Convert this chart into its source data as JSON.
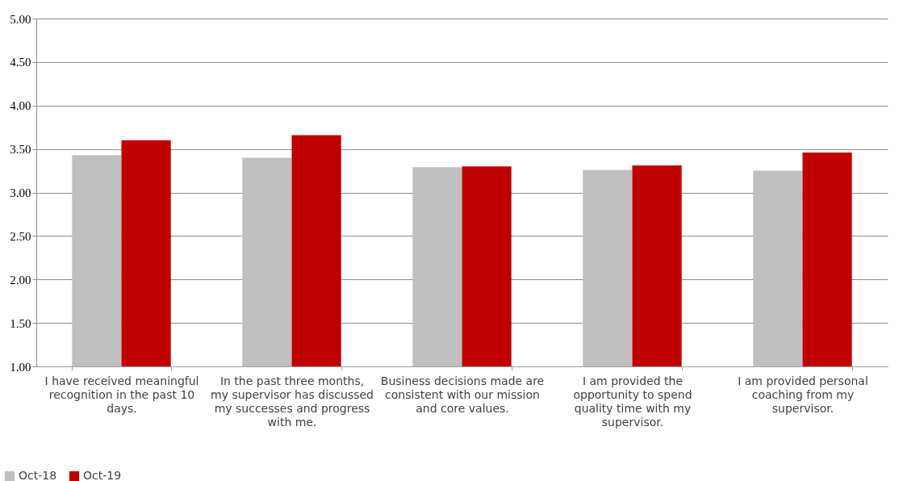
{
  "chart_data": {
    "type": "bar",
    "categories": [
      "I have received meaningful recognition in the past 10 days.",
      "In the past three months, my supervisor has discussed my successes and progress with me.",
      "Business decisions made are consistent with our mission and core values.",
      "I am provided the opportunity to spend quality time with my supervisor.",
      "I am provided personal coaching from my supervisor."
    ],
    "series": [
      {
        "name": "Oct-18",
        "color": "#bfbfbf",
        "values": [
          3.43,
          3.4,
          3.29,
          3.26,
          3.25
        ]
      },
      {
        "name": "Oct-19",
        "color": "#c00000",
        "values": [
          3.6,
          3.66,
          3.3,
          3.31,
          3.46
        ]
      }
    ],
    "ylim": [
      1,
      5
    ],
    "yticks": [
      {
        "value": 1,
        "label": "1.00"
      },
      {
        "value": 1.5,
        "label": "1.50"
      },
      {
        "value": 2,
        "label": "2.00"
      },
      {
        "value": 2.5,
        "label": "2.50"
      },
      {
        "value": 3,
        "label": "3.00"
      },
      {
        "value": 3.5,
        "label": "3.50"
      },
      {
        "value": 4,
        "label": "4.00"
      },
      {
        "value": 4.5,
        "label": "4.50"
      },
      {
        "value": 5,
        "label": "5.00"
      }
    ],
    "grid": "y",
    "legend": "bottom left"
  }
}
